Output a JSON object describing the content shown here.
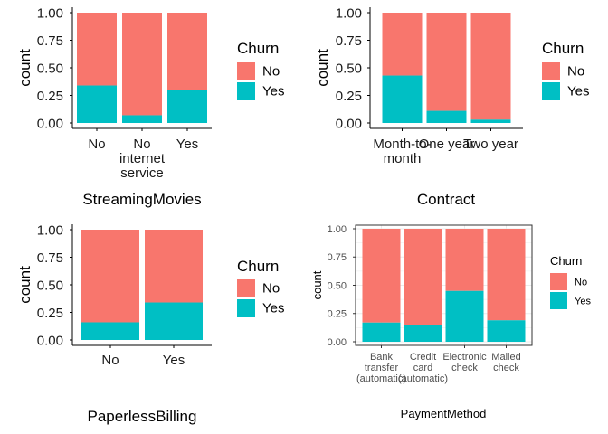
{
  "colors": {
    "no": "#F8766D",
    "yes": "#00BFC4",
    "panel4_grid": "#ebebeb",
    "panel4_border": "#333333"
  },
  "chart_data": [
    {
      "type": "bar",
      "stacked": "fill",
      "categories": [
        "No",
        "No\ninternet\nservice",
        "Yes"
      ],
      "series": [
        {
          "name": "No",
          "values": [
            0.66,
            0.93,
            0.7
          ]
        },
        {
          "name": "Yes",
          "values": [
            0.34,
            0.07,
            0.3
          ]
        }
      ],
      "xlabel": "StreamingMovies",
      "ylabel": "count",
      "ylim": [
        0,
        1
      ],
      "yticks": [
        "0.00",
        "0.25",
        "0.50",
        "0.75",
        "1.00"
      ],
      "legend_title": "Churn",
      "legend_position": "right",
      "grid": false
    },
    {
      "type": "bar",
      "stacked": "fill",
      "categories": [
        "Month-to-\nmonth",
        "One year",
        "Two year"
      ],
      "series": [
        {
          "name": "No",
          "values": [
            0.57,
            0.89,
            0.97
          ]
        },
        {
          "name": "Yes",
          "values": [
            0.43,
            0.11,
            0.03
          ]
        }
      ],
      "xlabel": "Contract",
      "ylabel": "count",
      "ylim": [
        0,
        1
      ],
      "yticks": [
        "0.00",
        "0.25",
        "0.50",
        "0.75",
        "1.00"
      ],
      "legend_title": "Churn",
      "legend_position": "right",
      "grid": false
    },
    {
      "type": "bar",
      "stacked": "fill",
      "categories": [
        "No",
        "Yes"
      ],
      "series": [
        {
          "name": "No",
          "values": [
            0.84,
            0.66
          ]
        },
        {
          "name": "Yes",
          "values": [
            0.16,
            0.34
          ]
        }
      ],
      "xlabel": "PaperlessBilling",
      "ylabel": "count",
      "ylim": [
        0,
        1
      ],
      "yticks": [
        "0.00",
        "0.25",
        "0.50",
        "0.75",
        "1.00"
      ],
      "legend_title": "Churn",
      "legend_position": "right",
      "grid": false
    },
    {
      "type": "bar",
      "stacked": "fill",
      "categories": [
        "Bank\ntransfer\n(automatic)",
        "Credit\ncard\n(automatic)",
        "Electronic\ncheck",
        "Mailed\ncheck"
      ],
      "series": [
        {
          "name": "No",
          "values": [
            0.83,
            0.85,
            0.55,
            0.81
          ]
        },
        {
          "name": "Yes",
          "values": [
            0.17,
            0.15,
            0.45,
            0.19
          ]
        }
      ],
      "xlabel": "PaymentMethod",
      "ylabel": "count",
      "ylim": [
        0,
        1
      ],
      "yticks": [
        "0.00",
        "0.25",
        "0.50",
        "0.75",
        "1.00"
      ],
      "legend_title": "Churn",
      "legend_position": "right",
      "grid": true
    }
  ]
}
